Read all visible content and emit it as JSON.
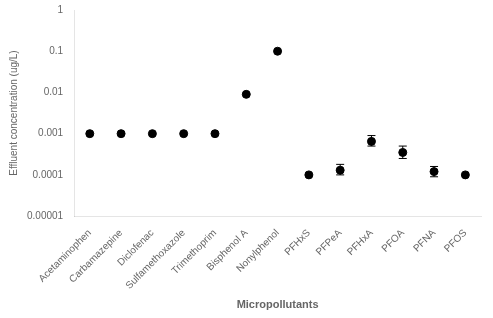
{
  "chart_data": {
    "type": "scatter",
    "categories": [
      "Acetaminophen",
      "Carbamazepine",
      "Diclofenac",
      "Sulfamethoxazole",
      "Trimethoprim",
      "Bisphenol A",
      "Nonylphenol",
      "PFHxS",
      "PFPeA",
      "PFHxA",
      "PFOA",
      "PFNA",
      "PFOS"
    ],
    "values": [
      0.001,
      0.001,
      0.001,
      0.001,
      0.001,
      0.009,
      0.1,
      0.0001,
      0.00013,
      0.00065,
      0.00035,
      0.00012,
      0.0001
    ],
    "error_low": [
      0,
      0,
      0,
      0,
      0,
      0,
      0,
      0,
      3e-05,
      0.00015,
      0.0001,
      3e-05,
      0
    ],
    "error_high": [
      0,
      0,
      0,
      0,
      0,
      0,
      0,
      0,
      5e-05,
      0.00025,
      0.00015,
      4e-05,
      0
    ],
    "color": "#000000",
    "marker": "circle",
    "xlabel": "Micropollutants",
    "ylabel": "Effluent concentration (ug/L)",
    "log": "y",
    "ylim": [
      1e-05,
      1
    ],
    "yticks": [
      1e-05,
      0.0001,
      0.001,
      0.01,
      0.1,
      1
    ],
    "grid": false
  }
}
